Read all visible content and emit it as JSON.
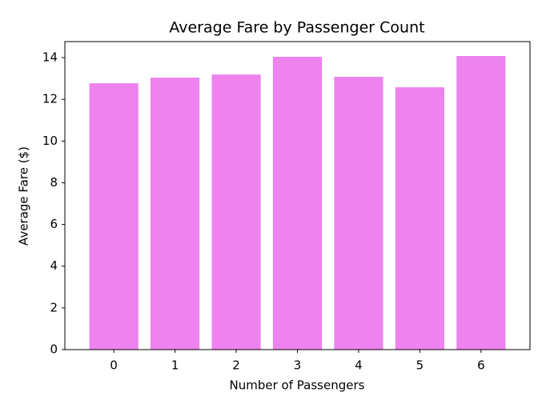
{
  "chart_data": {
    "type": "bar",
    "title": "Average Fare by Passenger Count",
    "xlabel": "Number of Passengers",
    "ylabel": "Average Fare ($)",
    "categories": [
      "0",
      "1",
      "2",
      "3",
      "4",
      "5",
      "6"
    ],
    "values": [
      12.77,
      13.04,
      13.19,
      14.04,
      13.08,
      12.58,
      14.08
    ],
    "color": "#ee82ee",
    "ylim": [
      0,
      14.77
    ],
    "yticks": [
      0,
      2,
      4,
      6,
      8,
      10,
      12,
      14
    ],
    "grid": false
  }
}
